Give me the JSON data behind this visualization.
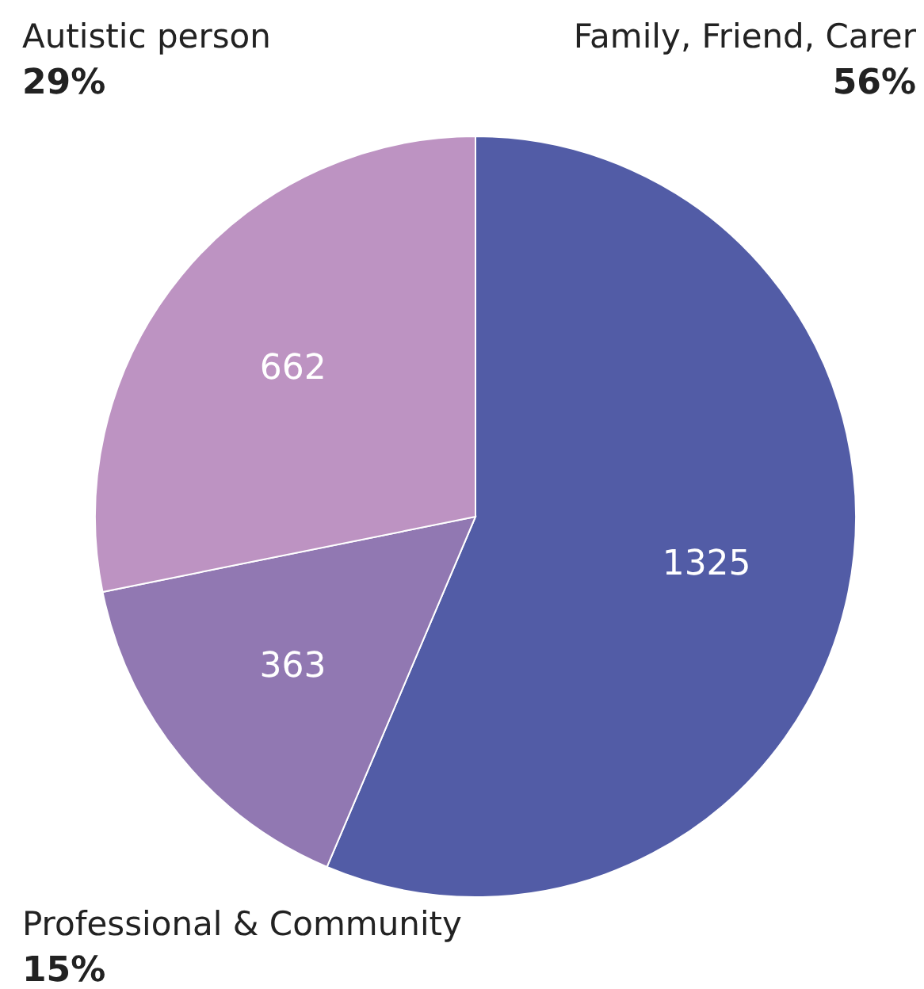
{
  "chart_data": {
    "type": "pie",
    "categories": [
      "Family, Friend, Carer",
      "Professional & Community",
      "Autistic person"
    ],
    "values": [
      1325,
      363,
      662
    ],
    "colors": [
      "#525ca6",
      "#9178b2",
      "#bd93c2"
    ],
    "data_labels": true,
    "annotations": [
      {
        "text": "56%",
        "x": "Family, Friend, Carer"
      },
      {
        "text": "15%",
        "x": "Professional & Community"
      },
      {
        "text": "29%",
        "x": "Autistic person"
      }
    ]
  }
}
